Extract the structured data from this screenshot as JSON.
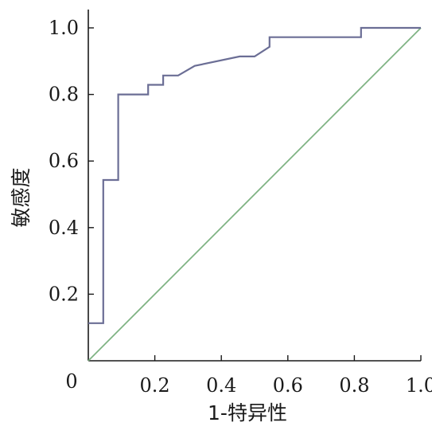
{
  "chart_data": {
    "type": "line",
    "xlabel": "1-特异性",
    "ylabel": "敏感度",
    "xlim": [
      0,
      1.0
    ],
    "ylim": [
      0,
      1.0
    ],
    "grid": false,
    "origin_label": "0",
    "x_tick_labels": [
      "0.2",
      "0.4",
      "0.6",
      "0.8",
      "1.0"
    ],
    "x_tick_values": [
      0.2,
      0.4,
      0.6,
      0.8,
      1.0
    ],
    "y_tick_labels": [
      "0.2",
      "0.4",
      "0.6",
      "0.8",
      "1.0"
    ],
    "y_tick_values": [
      0.2,
      0.4,
      0.6,
      0.8,
      1.0
    ],
    "series": [
      {
        "role": "roc-curve",
        "color": "#6b6e95",
        "x": [
          0.0,
          0.045,
          0.045,
          0.09,
          0.09,
          0.18,
          0.18,
          0.225,
          0.225,
          0.27,
          0.32,
          0.455,
          0.5,
          0.545,
          0.545,
          0.82,
          0.82,
          1.0
        ],
        "y": [
          0.113,
          0.113,
          0.543,
          0.543,
          0.8,
          0.8,
          0.829,
          0.829,
          0.857,
          0.857,
          0.886,
          0.914,
          0.914,
          0.943,
          0.972,
          0.972,
          1.0,
          1.0
        ]
      },
      {
        "role": "reference-diagonal",
        "color": "#7fb383",
        "x": [
          0.0,
          1.0
        ],
        "y": [
          0.0,
          1.0
        ]
      }
    ]
  }
}
